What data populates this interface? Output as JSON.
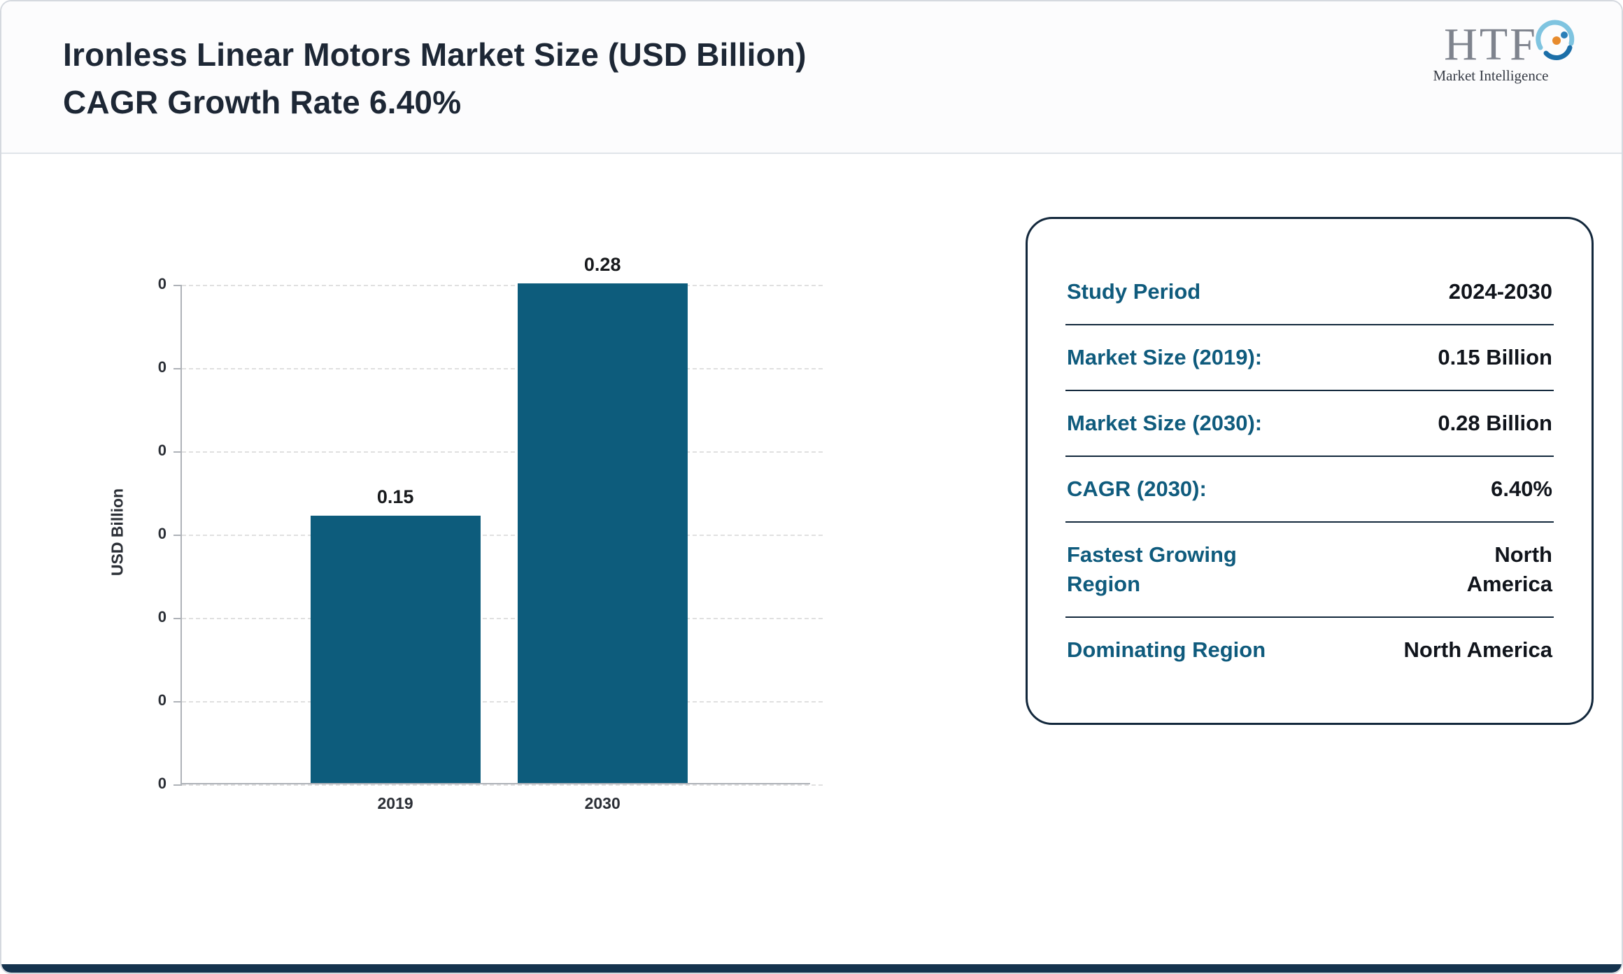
{
  "page": {
    "title_line1": "Ironless Linear Motors Market Size (USD Billion)",
    "title_line2": "CAGR Growth Rate 6.40%"
  },
  "logo": {
    "text": "HTF",
    "subtext": "Market Intelligence"
  },
  "chart_data": {
    "type": "bar",
    "categories": [
      "2019",
      "2030"
    ],
    "values": [
      0.15,
      0.28
    ],
    "value_labels": [
      "0.15",
      "0.28"
    ],
    "title": "Ironless Linear Motors Market Size (USD Billion) CAGR Growth Rate 6.40%",
    "xlabel": "",
    "ylabel": "USD Billion",
    "ylim": [
      0,
      0.28
    ],
    "y_tick_labels": [
      "0",
      "0",
      "0",
      "0",
      "0",
      "0",
      "0"
    ],
    "grid": "horizontal-dashed",
    "legend": "none",
    "bar_color": "#0d5c7c"
  },
  "info_card": {
    "rows": [
      {
        "label": "Study Period",
        "value": "2024-2030"
      },
      {
        "label": "Market Size (2019):",
        "value": "0.15 Billion"
      },
      {
        "label": "Market Size (2030):",
        "value": "0.28 Billion"
      },
      {
        "label": "CAGR (2030):",
        "value": "6.40%"
      },
      {
        "label": "Fastest Growing Region",
        "value": "North America"
      },
      {
        "label": "Dominating Region",
        "value": "North America"
      }
    ]
  },
  "colors": {
    "bar": "#0d5c7c",
    "card_label": "#0f5b7d",
    "card_border": "#13283c",
    "title_text": "#1d2735",
    "footer_strip": "#15334e"
  }
}
